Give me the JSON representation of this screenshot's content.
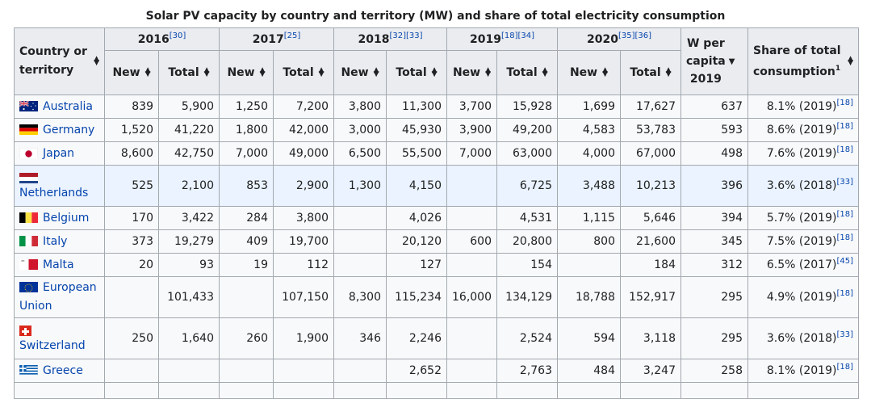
{
  "caption": "Solar PV capacity by country and territory (MW) and share of total electricity consumption",
  "headers": {
    "country": [
      "Country or",
      "territory"
    ],
    "years": [
      {
        "label": "2016",
        "refs": "[30]"
      },
      {
        "label": "2017",
        "refs": "[25]"
      },
      {
        "label": "2018",
        "refs": "[32][33]"
      },
      {
        "label": "2019",
        "refs": "[18][34]"
      },
      {
        "label": "2020",
        "refs": "[35][36]"
      }
    ],
    "new": "New",
    "total": "Total",
    "wpc": [
      "W per",
      "capita",
      "2019"
    ],
    "share": [
      "Share of total",
      "consumption"
    ],
    "share_note": "1"
  },
  "rows": [
    {
      "country": "Australia",
      "flag": "australia-flag",
      "n2016": "839",
      "t2016": "5,900",
      "n2017": "1,250",
      "t2017": "7,200",
      "n2018": "3,800",
      "t2018": "11,300",
      "n2019": "3,700",
      "t2019": "15,928",
      "n2020": "1,699",
      "t2020": "17,627",
      "wpc": "637",
      "share": "8.1% (2019)",
      "ref": "[18]"
    },
    {
      "country": "Germany",
      "flag": "germany-flag",
      "n2016": "1,520",
      "t2016": "41,220",
      "n2017": "1,800",
      "t2017": "42,000",
      "n2018": "3,000",
      "t2018": "45,930",
      "n2019": "3,900",
      "t2019": "49,200",
      "n2020": "4,583",
      "t2020": "53,783",
      "wpc": "593",
      "share": "8.6% (2019)",
      "ref": "[18]"
    },
    {
      "country": "Japan",
      "flag": "japan-flag",
      "n2016": "8,600",
      "t2016": "42,750",
      "n2017": "7,000",
      "t2017": "49,000",
      "n2018": "6,500",
      "t2018": "55,500",
      "n2019": "7,000",
      "t2019": "63,000",
      "n2020": "4,000",
      "t2020": "67,000",
      "wpc": "498",
      "share": "7.6% (2019)",
      "ref": "[18]"
    },
    {
      "country": "Netherlands",
      "flag": "netherlands-flag",
      "n2016": "525",
      "t2016": "2,100",
      "n2017": "853",
      "t2017": "2,900",
      "n2018": "1,300",
      "t2018": "4,150",
      "n2019": "",
      "t2019": "6,725",
      "n2020": "3,488",
      "t2020": "10,213",
      "wpc": "396",
      "share": "3.6% (2018)",
      "ref": "[33]"
    },
    {
      "country": "Belgium",
      "flag": "belgium-flag",
      "n2016": "170",
      "t2016": "3,422",
      "n2017": "284",
      "t2017": "3,800",
      "n2018": "",
      "t2018": "4,026",
      "n2019": "",
      "t2019": "4,531",
      "n2020": "1,115",
      "t2020": "5,646",
      "wpc": "394",
      "share": "5.7% (2019)",
      "ref": "[18]"
    },
    {
      "country": "Italy",
      "flag": "italy-flag",
      "n2016": "373",
      "t2016": "19,279",
      "n2017": "409",
      "t2017": "19,700",
      "n2018": "",
      "t2018": "20,120",
      "n2019": "600",
      "t2019": "20,800",
      "n2020": "800",
      "t2020": "21,600",
      "wpc": "345",
      "share": "7.5% (2019)",
      "ref": "[18]"
    },
    {
      "country": "Malta",
      "flag": "malta-flag",
      "n2016": "20",
      "t2016": "93",
      "n2017": "19",
      "t2017": "112",
      "n2018": "",
      "t2018": "127",
      "n2019": "",
      "t2019": "154",
      "n2020": "",
      "t2020": "184",
      "wpc": "312",
      "share": "6.5% (2017)",
      "ref": "[45]"
    },
    {
      "country": "European Union",
      "flag": "eu-flag",
      "n2016": "",
      "t2016": "101,433",
      "n2017": "",
      "t2017": "107,150",
      "n2018": "8,300",
      "t2018": "115,234",
      "n2019": "16,000",
      "t2019": "134,129",
      "n2020": "18,788",
      "t2020": "152,917",
      "wpc": "295",
      "share": "4.9% (2019)",
      "ref": "[18]"
    },
    {
      "country": "Switzerland",
      "flag": "switzerland-flag",
      "n2016": "250",
      "t2016": "1,640",
      "n2017": "260",
      "t2017": "1,900",
      "n2018": "346",
      "t2018": "2,246",
      "n2019": "",
      "t2019": "2,524",
      "n2020": "594",
      "t2020": "3,118",
      "wpc": "295",
      "share": "3.6% (2018)",
      "ref": "[33]"
    },
    {
      "country": "Greece",
      "flag": "greece-flag",
      "n2016": "",
      "t2016": "",
      "n2017": "",
      "t2017": "",
      "n2018": "",
      "t2018": "2,652",
      "n2019": "",
      "t2019": "2,763",
      "n2020": "484",
      "t2020": "3,247",
      "wpc": "258",
      "share": "8.1% (2019)",
      "ref": "[18]"
    }
  ]
}
